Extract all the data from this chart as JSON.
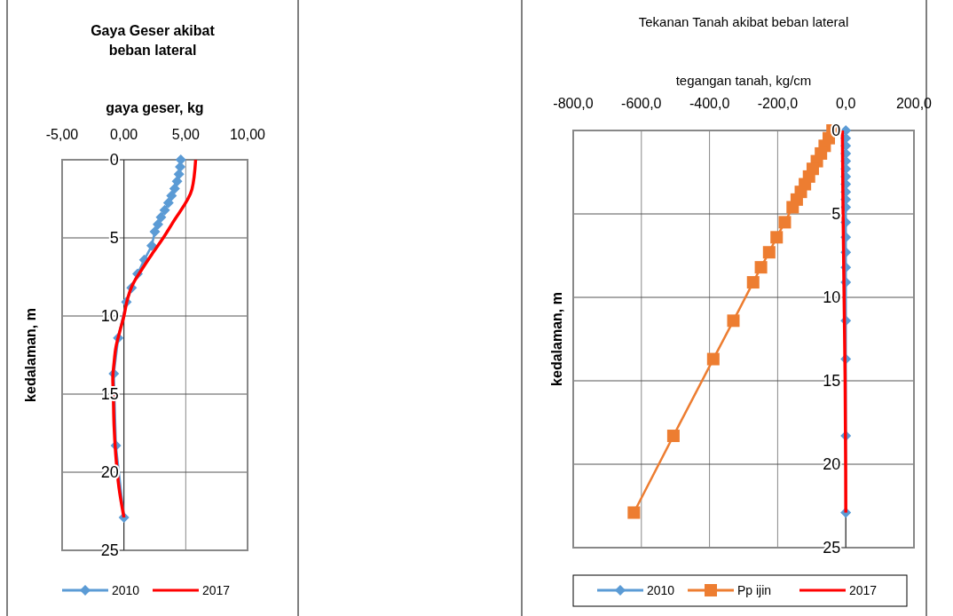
{
  "chart_data": [
    {
      "type": "line",
      "title": "Gaya Geser akibat beban lateral",
      "xlabel": "gaya geser, kg",
      "ylabel": "kedalaman, m",
      "xlim": [
        -5,
        10
      ],
      "xticks": [
        {
          "value": -5,
          "label": "-5,00"
        },
        {
          "value": 0,
          "label": "0,00"
        },
        {
          "value": 5,
          "label": "5,00"
        },
        {
          "value": 10,
          "label": "10,00"
        }
      ],
      "ylim": [
        25,
        0
      ],
      "yticks": [
        0,
        5,
        10,
        15,
        20,
        25
      ],
      "grid": true,
      "legend": "bottom",
      "series": [
        {
          "name": "2010",
          "color": "#5b9bd5",
          "marker": "diamond",
          "x": [
            4.6,
            4.55,
            4.45,
            4.3,
            4.1,
            3.85,
            3.6,
            3.3,
            3.0,
            2.75,
            2.5,
            2.25,
            1.65,
            1.1,
            0.62,
            0.2,
            -0.46,
            -0.82,
            -0.65,
            0
          ],
          "values": [
            0,
            0.46,
            0.92,
            1.38,
            1.84,
            2.3,
            2.76,
            3.22,
            3.68,
            4.14,
            4.6,
            5.5,
            6.4,
            7.3,
            8.2,
            9.1,
            11.4,
            13.7,
            18.3,
            22.9
          ]
        },
        {
          "name": "2017",
          "color": "#ff0000",
          "marker": "none",
          "x": [
            5.8,
            5.5,
            3.97,
            3.18,
            2.3,
            1.46,
            0.7,
            0.26,
            0,
            -0.34,
            -0.65,
            -0.8,
            -0.9,
            -0.86,
            -0.8,
            -0.65,
            -0.4,
            0
          ],
          "values": [
            0,
            1.9,
            4,
            5,
            6,
            7,
            8,
            9,
            10,
            11,
            12,
            13,
            14,
            15,
            17,
            19,
            21,
            22.9
          ]
        }
      ]
    },
    {
      "type": "line",
      "title": "Tekanan Tanah akibat beban lateral",
      "xlabel": "tegangan tanah, kg/cm",
      "ylabel": "kedalaman, m",
      "xlim": [
        -800,
        200
      ],
      "xticks": [
        {
          "value": -800,
          "label": "-800,0"
        },
        {
          "value": -600,
          "label": "-600,0"
        },
        {
          "value": -400,
          "label": "-400,0"
        },
        {
          "value": -200,
          "label": "-200,0"
        },
        {
          "value": 0,
          "label": "0,0"
        },
        {
          "value": 200,
          "label": "200,0"
        }
      ],
      "ylim": [
        25,
        0
      ],
      "yticks": [
        0,
        5,
        10,
        15,
        20,
        25
      ],
      "grid": true,
      "legend": "bottom",
      "series": [
        {
          "name": "2010",
          "color": "#5b9bd5",
          "marker": "diamond",
          "x": [
            0,
            0,
            0,
            0,
            0,
            0,
            0,
            0,
            0,
            0,
            0,
            0,
            0,
            0,
            0,
            0,
            0,
            0,
            0,
            0
          ],
          "values": [
            0,
            0.46,
            0.92,
            1.38,
            1.84,
            2.3,
            2.76,
            3.22,
            3.68,
            4.14,
            4.6,
            5.5,
            6.4,
            7.3,
            8.2,
            9.1,
            11.4,
            13.7,
            18.3,
            22.9
          ]
        },
        {
          "name": "Pp ijin",
          "color": "#ed7d31",
          "marker": "square",
          "x": [
            -39,
            -50,
            -62,
            -73,
            -85,
            -97,
            -108,
            -120,
            -132,
            -144,
            -156,
            -179,
            -203,
            -225,
            -249,
            -272,
            -330,
            -389,
            -506,
            -622
          ],
          "values": [
            0,
            0.46,
            0.92,
            1.38,
            1.84,
            2.3,
            2.76,
            3.22,
            3.68,
            4.14,
            4.6,
            5.5,
            6.4,
            7.3,
            8.2,
            9.1,
            11.4,
            13.7,
            18.3,
            22.9
          ]
        },
        {
          "name": "2017",
          "color": "#ff0000",
          "marker": "none",
          "x": [
            -10,
            -8,
            -5,
            -2,
            0
          ],
          "values": [
            0,
            5,
            10,
            15,
            22.9
          ]
        }
      ]
    }
  ]
}
